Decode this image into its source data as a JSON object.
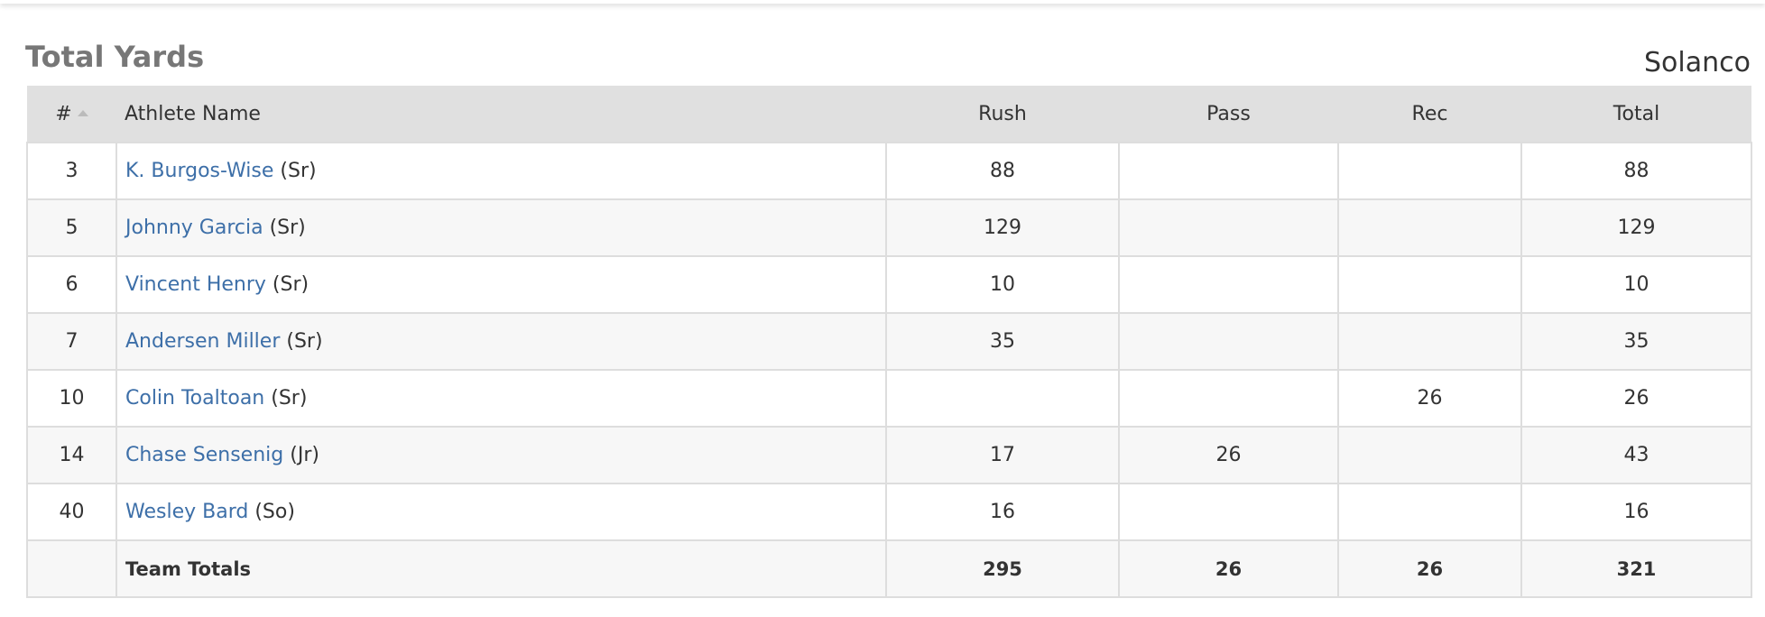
{
  "title": "Total Yards",
  "team": "Solanco",
  "table": {
    "headers": [
      "#",
      "Athlete Name",
      "Rush",
      "Pass",
      "Rec",
      "Total"
    ],
    "rows": [
      {
        "number": 3,
        "name": "K. Burgos-Wise",
        "class": "(Sr)",
        "rush": 88,
        "pass": null,
        "rec": null,
        "total": 88
      },
      {
        "number": 5,
        "name": "Johnny Garcia",
        "class": "(Sr)",
        "rush": 129,
        "pass": null,
        "rec": null,
        "total": 129
      },
      {
        "number": 6,
        "name": "Vincent Henry",
        "class": "(Sr)",
        "rush": 10,
        "pass": null,
        "rec": null,
        "total": 10
      },
      {
        "number": 7,
        "name": "Andersen Miller",
        "class": "(Sr)",
        "rush": 35,
        "pass": null,
        "rec": null,
        "total": 35
      },
      {
        "number": 10,
        "name": "Colin Toaltoan",
        "class": "(Sr)",
        "rush": null,
        "pass": null,
        "rec": 26,
        "total": 26
      },
      {
        "number": 14,
        "name": "Chase Sensenig",
        "class": "(Jr)",
        "rush": 17,
        "pass": 26,
        "rec": null,
        "total": 43
      },
      {
        "number": 40,
        "name": "Wesley Bard",
        "class": "(So)",
        "rush": 16,
        "pass": null,
        "rec": null,
        "total": 16
      }
    ],
    "totals": {
      "label": "Team Totals",
      "rush": 295,
      "pass": 26,
      "rec": 26,
      "total": 321
    }
  }
}
